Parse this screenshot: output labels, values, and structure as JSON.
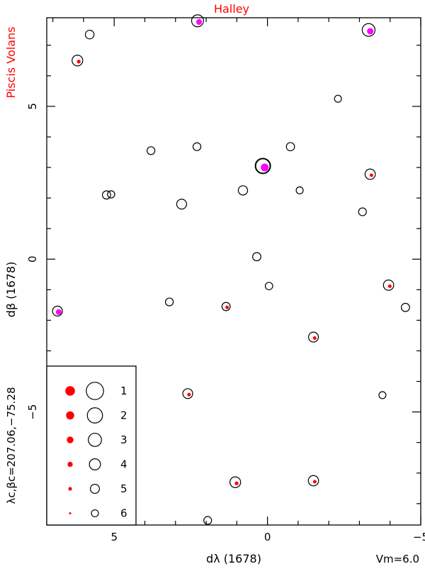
{
  "chart_data": {
    "type": "scatter",
    "title": "Halley",
    "side_title": "Piscis Volans",
    "xlabel": "dλ (1678)",
    "ylabel": "dβ (1678)",
    "corner_label": "λc,βc=207.06,−75.28",
    "magnitude_limit": "Vm=6.0",
    "xlim": [
      7.2,
      -5.0
    ],
    "ylim": [
      -8.7,
      7.9
    ],
    "x_ticks": [
      5,
      0,
      -5
    ],
    "y_ticks": [
      5,
      0,
      -5
    ],
    "x_tick_labels": [
      "5",
      "0",
      "−5"
    ],
    "y_tick_labels": [
      "5",
      "0",
      "−5"
    ],
    "grid": false,
    "colors": {
      "catalog": "#ff0000",
      "special": "#ff00ff",
      "frame": "#000000",
      "title": "#ff0000"
    },
    "legend": {
      "position": "bottom-left",
      "magnitudes": [
        "1",
        "2",
        "3",
        "4",
        "5",
        "6"
      ]
    },
    "stars": [
      {
        "x": 2.28,
        "y": 7.8,
        "mag": 3.6,
        "dot": "special"
      },
      {
        "x": -3.3,
        "y": 7.5,
        "mag": 3.2,
        "dot": "special"
      },
      {
        "x": 5.8,
        "y": 7.35,
        "mag": 5.2,
        "dot": "none"
      },
      {
        "x": 6.2,
        "y": 6.5,
        "mag": 4.2,
        "dot": "catalog"
      },
      {
        "x": -2.3,
        "y": 5.25,
        "mag": 6.0,
        "dot": "none"
      },
      {
        "x": 3.8,
        "y": 3.55,
        "mag": 5.6,
        "dot": "none"
      },
      {
        "x": 2.3,
        "y": 3.68,
        "mag": 5.6,
        "dot": "none"
      },
      {
        "x": -0.75,
        "y": 3.68,
        "mag": 5.4,
        "dot": "none"
      },
      {
        "x": 0.15,
        "y": 3.05,
        "mag": 2.2,
        "dot": "special"
      },
      {
        "x": -3.35,
        "y": 2.78,
        "mag": 4.4,
        "dot": "catalog"
      },
      {
        "x": 0.8,
        "y": 2.25,
        "mag": 4.9,
        "dot": "none"
      },
      {
        "x": -1.05,
        "y": 2.25,
        "mag": 6.0,
        "dot": "none"
      },
      {
        "x": 5.25,
        "y": 2.1,
        "mag": 5.4,
        "dot": "none"
      },
      {
        "x": 5.1,
        "y": 2.12,
        "mag": 5.9,
        "dot": "none"
      },
      {
        "x": 2.8,
        "y": 1.8,
        "mag": 4.6,
        "dot": "none"
      },
      {
        "x": -3.1,
        "y": 1.55,
        "mag": 5.6,
        "dot": "none"
      },
      {
        "x": 0.35,
        "y": 0.08,
        "mag": 5.4,
        "dot": "none"
      },
      {
        "x": -3.95,
        "y": -0.85,
        "mag": 4.4,
        "dot": "catalog"
      },
      {
        "x": -0.05,
        "y": -0.88,
        "mag": 5.8,
        "dot": "none"
      },
      {
        "x": 3.2,
        "y": -1.4,
        "mag": 5.6,
        "dot": "none"
      },
      {
        "x": 1.35,
        "y": -1.55,
        "mag": 5.4,
        "dot": "catalog"
      },
      {
        "x": -4.5,
        "y": -1.58,
        "mag": 5.4,
        "dot": "none"
      },
      {
        "x": 6.85,
        "y": -1.7,
        "mag": 4.6,
        "dot": "special"
      },
      {
        "x": -1.5,
        "y": -2.55,
        "mag": 4.6,
        "dot": "catalog"
      },
      {
        "x": 2.6,
        "y": -4.4,
        "mag": 4.6,
        "dot": "catalog"
      },
      {
        "x": -3.75,
        "y": -4.45,
        "mag": 6.0,
        "dot": "none"
      },
      {
        "x": 1.05,
        "y": -7.3,
        "mag": 4.2,
        "dot": "catalog"
      },
      {
        "x": -1.5,
        "y": -7.25,
        "mag": 4.4,
        "dot": "catalog"
      },
      {
        "x": 1.95,
        "y": -8.55,
        "mag": 5.6,
        "dot": "none"
      }
    ]
  }
}
